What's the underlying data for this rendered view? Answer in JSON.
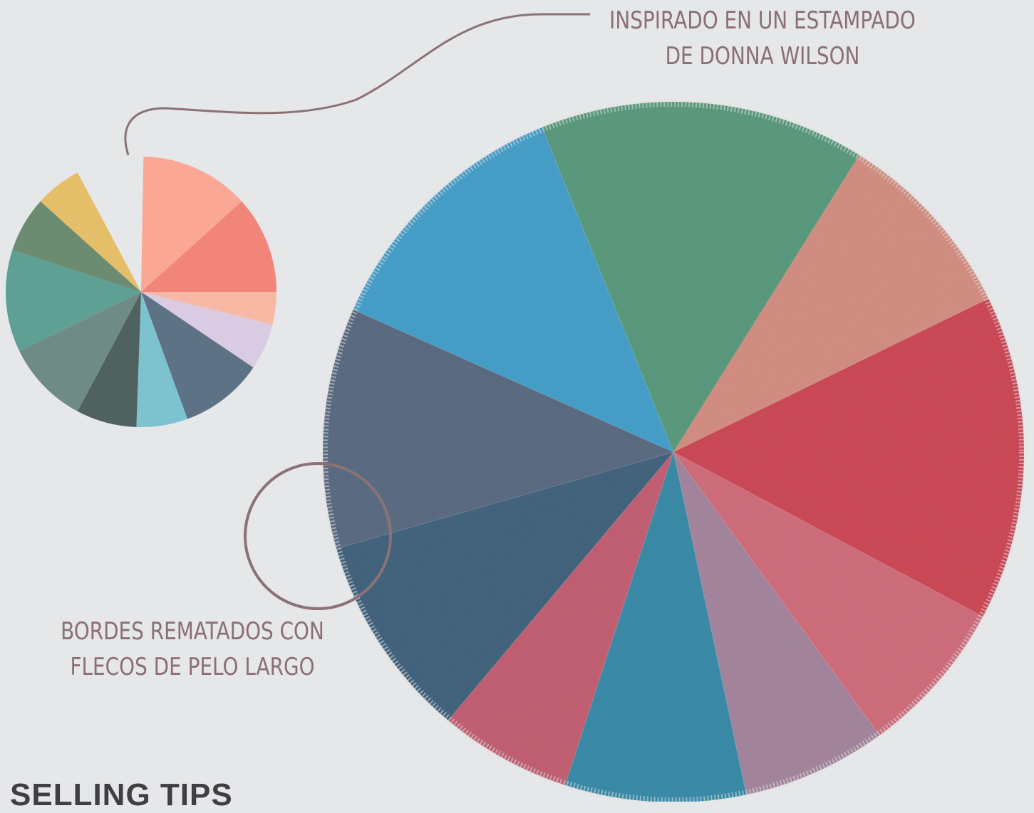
{
  "callouts": {
    "top": {
      "line1": "INSPIRADO EN UN ESTAMPADO",
      "line2": "DE DONNA WILSON"
    },
    "bottom": {
      "line1": "BORDES REMATADOS CON",
      "line2": "FLECOS DE PELO LARGO"
    }
  },
  "section_heading": "SELLING TIPS",
  "colors": {
    "background": "#e6e7e8",
    "callout_line": "#8a7275",
    "callout_text": "#8a6f73"
  },
  "pattern_swatch_colors": [
    "#fba796",
    "#f2857a",
    "#f7b9a3",
    "#d9cbe2",
    "#5d7385",
    "#7cc2cf",
    "#4f625f",
    "#6f8b85",
    "#5fa094",
    "#6b8c70",
    "#e5be6a"
  ],
  "rug_slice_colors": [
    "#c5d26a",
    "#d99386",
    "#d24d5c",
    "#d57281",
    "#a98aa2",
    "#3e90ad",
    "#c86477",
    "#476782",
    "#5f6f86",
    "#4aa4cf",
    "#5e9f82"
  ]
}
